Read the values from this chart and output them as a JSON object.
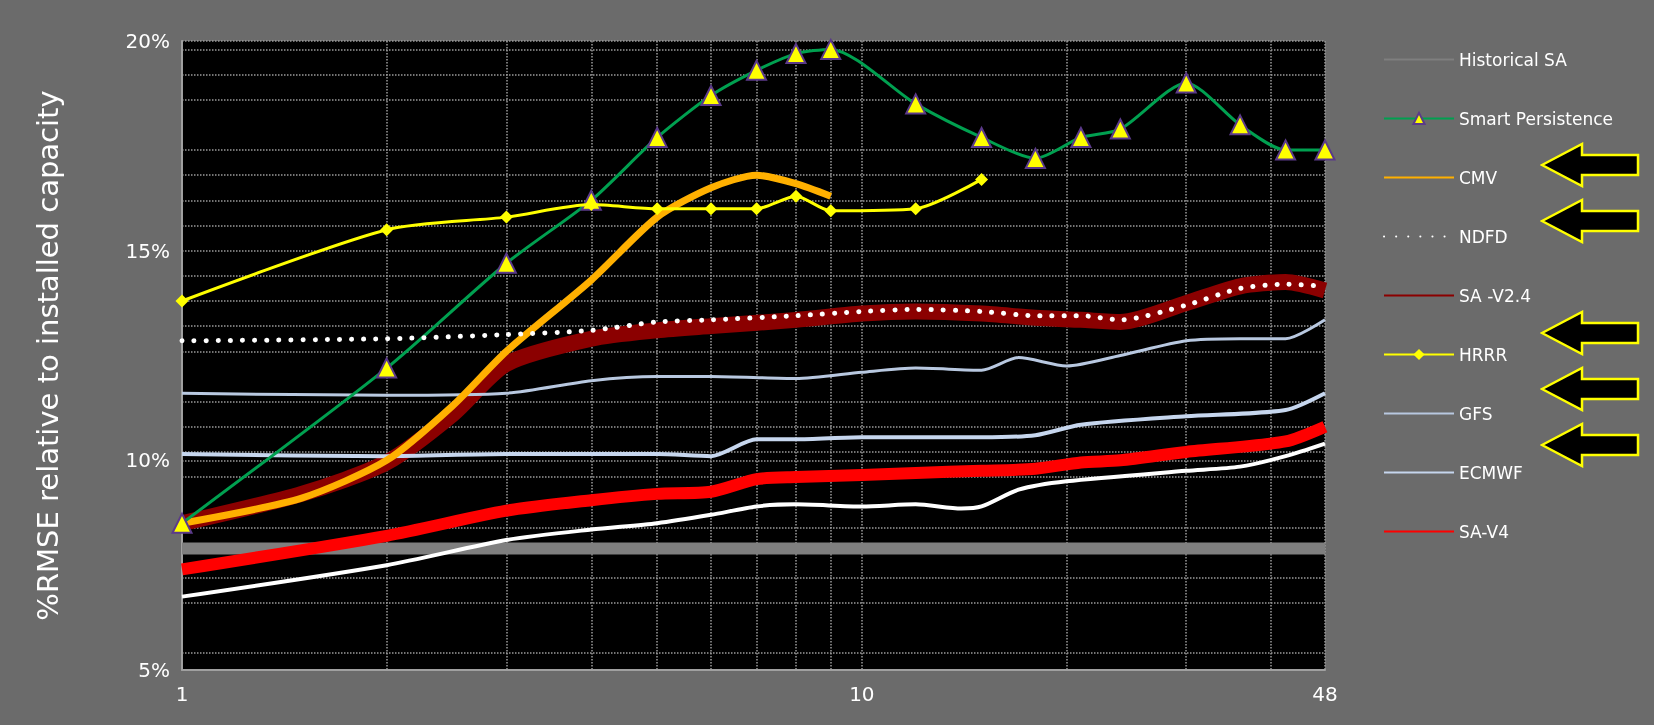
{
  "chart_data": {
    "type": "line",
    "ylabel": "%RMSE relative to installed capacity",
    "log": "x",
    "xlim": [
      1,
      48
    ],
    "xticks": [
      1,
      {
        "value": 2,
        "label": null
      },
      {
        "value": 3,
        "label": null
      },
      {
        "value": 4,
        "label": null
      },
      {
        "value": 5,
        "label": null
      },
      {
        "value": 6,
        "label": null
      },
      {
        "value": 7,
        "label": null
      },
      {
        "value": 8,
        "label": null
      },
      {
        "value": 9,
        "label": null
      },
      10,
      {
        "value": 20,
        "label": null
      },
      {
        "value": 30,
        "label": null
      },
      {
        "value": 40,
        "label": null
      },
      48
    ],
    "ylim": [
      5,
      20
    ],
    "yticks": [
      {
        "value": 5,
        "label": "5%"
      },
      {
        "value": 10,
        "label": "10%"
      },
      {
        "value": 15,
        "label": "15%"
      },
      {
        "value": 20,
        "label": "20%"
      }
    ],
    "grid": true,
    "legend": "right",
    "marker": "none",
    "line_style": "solid",
    "series": [
      {
        "name": "Historical SA",
        "color": "#7f7f7f",
        "x": [
          1,
          48
        ],
        "values": [
          7.9,
          7.9
        ]
      },
      {
        "name": "Smart Persistence",
        "color": "#00a050",
        "marker": "triangle",
        "x": [
          1,
          2,
          3,
          4,
          5,
          6,
          7,
          8,
          9,
          12,
          15,
          18,
          21,
          24,
          30,
          36,
          42,
          48
        ],
        "values": [
          8.5,
          12.2,
          14.7,
          16.2,
          17.7,
          18.7,
          19.3,
          19.7,
          19.8,
          18.5,
          17.7,
          17.2,
          17.7,
          17.9,
          19.0,
          18.0,
          17.4,
          17.4
        ]
      },
      {
        "name": "CMV",
        "color": "#ffb000",
        "x": [
          1,
          1.5,
          2,
          2.5,
          3,
          4,
          5,
          6,
          7,
          8,
          9
        ],
        "values": [
          8.5,
          9.1,
          10.0,
          11.3,
          12.6,
          14.3,
          15.8,
          16.5,
          16.8,
          16.6,
          16.3
        ]
      },
      {
        "name": "NDFD",
        "color": "#ffffff",
        "line_style": "dotted",
        "x": [
          1,
          2,
          3,
          4,
          5,
          6,
          8,
          10,
          12,
          15,
          18,
          21,
          24,
          30,
          36,
          42,
          48
        ],
        "values": [
          12.85,
          12.9,
          13.0,
          13.1,
          13.3,
          13.35,
          13.45,
          13.55,
          13.6,
          13.55,
          13.45,
          13.45,
          13.35,
          13.7,
          14.1,
          14.2,
          14.15
        ]
      },
      {
        "name": "SA -V2.4",
        "color": "#8b0000",
        "x": [
          1,
          1.5,
          2,
          2.5,
          3,
          4,
          5,
          6,
          8,
          10,
          12,
          15,
          18,
          21,
          24,
          30,
          36,
          42,
          48
        ],
        "values": [
          8.5,
          9.2,
          9.95,
          11.1,
          12.3,
          12.9,
          13.1,
          13.2,
          13.35,
          13.5,
          13.55,
          13.5,
          13.4,
          13.35,
          13.3,
          13.75,
          14.15,
          14.25,
          14.05
        ]
      },
      {
        "name": "HRRR",
        "color": "#ffff00",
        "marker": "diamond",
        "x": [
          1,
          2,
          3,
          4,
          5,
          6,
          7,
          8,
          9,
          12,
          15
        ],
        "values": [
          13.8,
          15.5,
          15.8,
          16.1,
          16.0,
          16.0,
          16.0,
          16.3,
          15.95,
          16.0,
          16.7
        ]
      },
      {
        "name": "GFS",
        "color": "#b8c8e0",
        "x": [
          1,
          2,
          3,
          4,
          5,
          6,
          8,
          10,
          12,
          15,
          17,
          20,
          24,
          30,
          36,
          42,
          48
        ],
        "values": [
          11.6,
          11.55,
          11.6,
          11.9,
          12.0,
          12.0,
          11.95,
          12.1,
          12.2,
          12.15,
          12.45,
          12.25,
          12.5,
          12.85,
          12.9,
          12.9,
          13.35
        ]
      },
      {
        "name": "ECMWF",
        "color": "#c6d6ee",
        "x": [
          1,
          2,
          3,
          4,
          5,
          6,
          7,
          8,
          10,
          15,
          18,
          21,
          30,
          42,
          48
        ],
        "values": [
          10.15,
          10.1,
          10.15,
          10.15,
          10.15,
          10.1,
          10.5,
          10.5,
          10.55,
          10.55,
          10.6,
          10.85,
          11.05,
          11.2,
          11.6
        ]
      },
      {
        "name": "SA-V4",
        "color": "#ff0000",
        "x": [
          1,
          2,
          3,
          4,
          5,
          6,
          7,
          8,
          10,
          12,
          15,
          18,
          21,
          24,
          30,
          42,
          48
        ],
        "values": [
          7.4,
          8.2,
          8.8,
          9.05,
          9.2,
          9.25,
          9.55,
          9.6,
          9.65,
          9.7,
          9.75,
          9.8,
          9.95,
          10.0,
          10.2,
          10.45,
          10.8
        ]
      },
      {
        "color": "#ffffff",
        "x": [
          1,
          2,
          3,
          4,
          5,
          6,
          7,
          8,
          10,
          12,
          14,
          15,
          17,
          20,
          30,
          36,
          42,
          48
        ],
        "values": [
          6.75,
          7.5,
          8.1,
          8.35,
          8.5,
          8.7,
          8.9,
          8.95,
          8.9,
          8.95,
          8.85,
          8.9,
          9.3,
          9.5,
          9.75,
          9.85,
          10.1,
          10.4
        ]
      }
    ]
  }
}
